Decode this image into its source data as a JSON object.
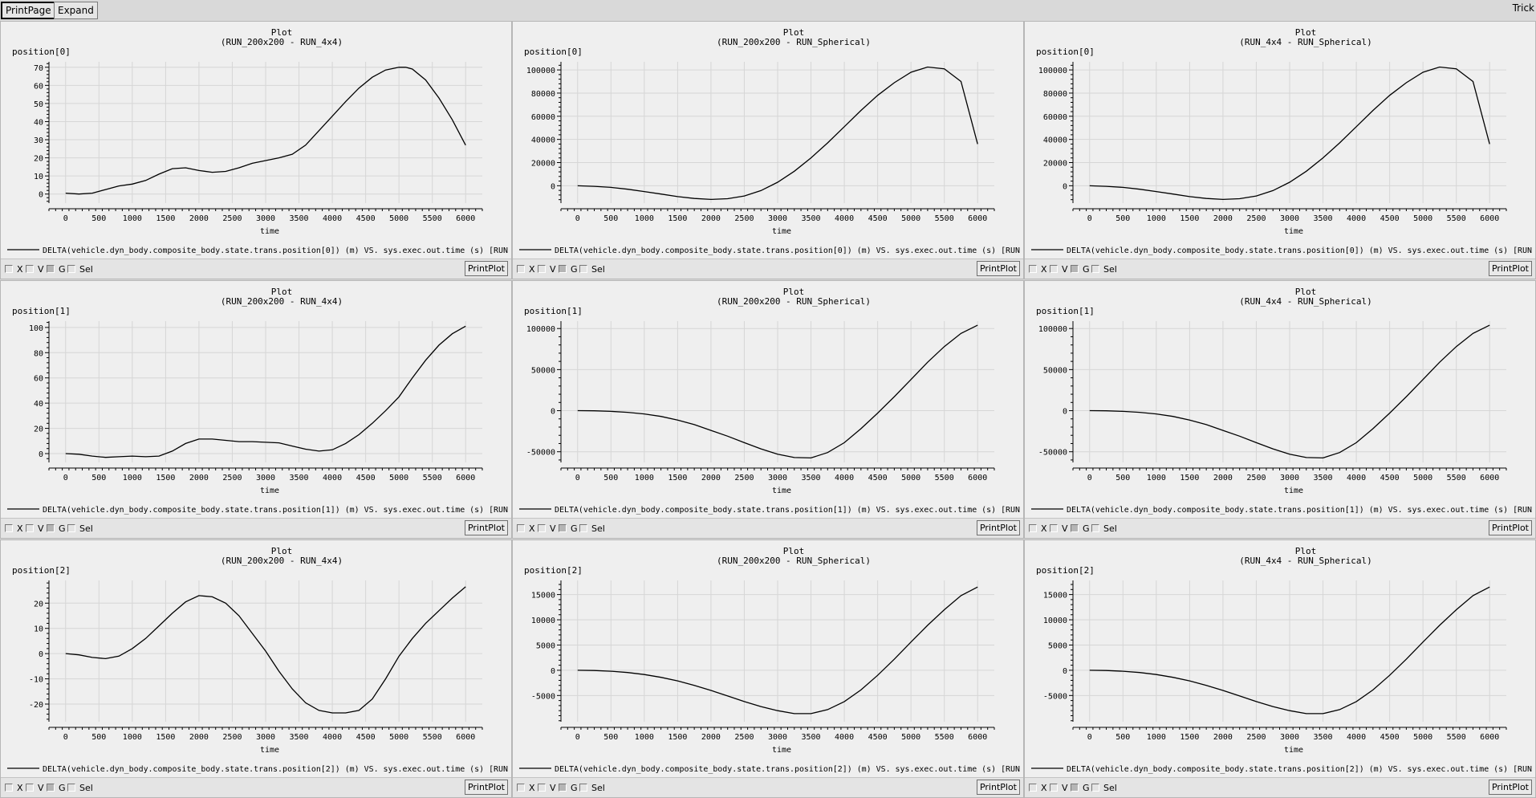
{
  "window": {
    "title": "Trick",
    "print_page_label": "PrintPage",
    "expand_label": "Expand"
  },
  "controls": {
    "x_label": "X",
    "v_label": "V",
    "g_label": "G",
    "sel_label": "Sel",
    "print_plot_label": "PrintPlot"
  },
  "chart_data": [
    {
      "type": "line",
      "title": "Plot",
      "subtitle": "(RUN_200x200 - RUN_4x4)",
      "xlabel": "time",
      "ylabel": "position[0]",
      "xlim": [
        -250,
        6250
      ],
      "ylim": [
        -5,
        73
      ],
      "xticks": [
        0,
        500,
        1000,
        1500,
        2000,
        2500,
        3000,
        3500,
        4000,
        4500,
        5000,
        5500,
        6000
      ],
      "yticks": [
        0,
        10,
        20,
        30,
        40,
        50,
        60,
        70
      ],
      "grid": true,
      "legend_text": "DELTA(vehicle.dyn_body.composite_body.state.trans.position[0]) (m) VS. sys.exec.out.time (s) [RUN",
      "series": [
        {
          "x": [
            0,
            200,
            400,
            600,
            800,
            1000,
            1200,
            1400,
            1600,
            1800,
            2000,
            2200,
            2400,
            2600,
            2800,
            3000,
            3200,
            3400,
            3600,
            3800,
            4000,
            4200,
            4400,
            4600,
            4800,
            5000,
            5100,
            5200,
            5400,
            5600,
            5800,
            6000
          ],
          "y": [
            0.5,
            0,
            0.5,
            2.5,
            4.5,
            5.5,
            7.5,
            11,
            14,
            14.5,
            13,
            12,
            12.5,
            14.5,
            17,
            18.5,
            20,
            22,
            27,
            35,
            43,
            51,
            58.5,
            64.5,
            68.5,
            70,
            70,
            69,
            63,
            53,
            41,
            27
          ]
        }
      ]
    },
    {
      "type": "line",
      "title": "Plot",
      "subtitle": "(RUN_200x200 - RUN_Spherical)",
      "xlabel": "time",
      "ylabel": "position[0]",
      "xlim": [
        -250,
        6250
      ],
      "ylim": [
        -15000,
        107000
      ],
      "xticks": [
        0,
        500,
        1000,
        1500,
        2000,
        2500,
        3000,
        3500,
        4000,
        4500,
        5000,
        5500,
        6000
      ],
      "yticks": [
        0,
        20000,
        40000,
        60000,
        80000,
        100000
      ],
      "grid": true,
      "legend_text": "DELTA(vehicle.dyn_body.composite_body.state.trans.position[0]) (m) VS. sys.exec.out.time (s) [RUN",
      "series": [
        {
          "x": [
            0,
            250,
            500,
            750,
            1000,
            1250,
            1500,
            1750,
            2000,
            2250,
            2500,
            2750,
            3000,
            3250,
            3500,
            3750,
            4000,
            4250,
            4500,
            4750,
            5000,
            5250,
            5500,
            5750,
            6000
          ],
          "y": [
            0,
            -500,
            -1400,
            -3000,
            -5000,
            -7200,
            -9400,
            -11000,
            -11800,
            -11200,
            -8800,
            -4200,
            3000,
            12500,
            24000,
            37000,
            51000,
            65000,
            78000,
            89000,
            98000,
            102500,
            101000,
            90000,
            36000
          ]
        }
      ]
    },
    {
      "type": "line",
      "title": "Plot",
      "subtitle": "(RUN_4x4 - RUN_Spherical)",
      "xlabel": "time",
      "ylabel": "position[0]",
      "xlim": [
        -250,
        6250
      ],
      "ylim": [
        -15000,
        107000
      ],
      "xticks": [
        0,
        500,
        1000,
        1500,
        2000,
        2500,
        3000,
        3500,
        4000,
        4500,
        5000,
        5500,
        6000
      ],
      "yticks": [
        0,
        20000,
        40000,
        60000,
        80000,
        100000
      ],
      "grid": true,
      "legend_text": "DELTA(vehicle.dyn_body.composite_body.state.trans.position[0]) (m) VS. sys.exec.out.time (s) [RUN",
      "series": [
        {
          "x": [
            0,
            250,
            500,
            750,
            1000,
            1250,
            1500,
            1750,
            2000,
            2250,
            2500,
            2750,
            3000,
            3250,
            3500,
            3750,
            4000,
            4250,
            4500,
            4750,
            5000,
            5250,
            5500,
            5750,
            6000
          ],
          "y": [
            0,
            -500,
            -1400,
            -3000,
            -5000,
            -7200,
            -9400,
            -11000,
            -11800,
            -11200,
            -8800,
            -4200,
            3000,
            12500,
            24000,
            37000,
            51000,
            65000,
            78000,
            89000,
            98000,
            102500,
            101000,
            90000,
            36000
          ]
        }
      ]
    },
    {
      "type": "line",
      "title": "Plot",
      "subtitle": "(RUN_200x200 - RUN_4x4)",
      "xlabel": "time",
      "ylabel": "position[1]",
      "xlim": [
        -250,
        6250
      ],
      "ylim": [
        -7,
        105
      ],
      "xticks": [
        0,
        500,
        1000,
        1500,
        2000,
        2500,
        3000,
        3500,
        4000,
        4500,
        5000,
        5500,
        6000
      ],
      "yticks": [
        0,
        20,
        40,
        60,
        80,
        100
      ],
      "grid": true,
      "legend_text": "DELTA(vehicle.dyn_body.composite_body.state.trans.position[1]) (m) VS. sys.exec.out.time (s) [RUN",
      "series": [
        {
          "x": [
            0,
            200,
            400,
            600,
            800,
            1000,
            1200,
            1400,
            1600,
            1800,
            2000,
            2200,
            2400,
            2600,
            2800,
            3000,
            3200,
            3400,
            3600,
            3800,
            4000,
            4200,
            4400,
            4600,
            4800,
            5000,
            5200,
            5400,
            5600,
            5800,
            6000
          ],
          "y": [
            0,
            -0.5,
            -2,
            -3,
            -2.5,
            -2,
            -2.5,
            -2,
            2,
            8,
            11.5,
            11.5,
            10.5,
            9.5,
            9.5,
            9,
            8.5,
            6,
            3.5,
            2,
            3,
            8,
            15,
            24,
            34,
            45,
            60,
            74,
            86,
            95,
            101
          ]
        }
      ]
    },
    {
      "type": "line",
      "title": "Plot",
      "subtitle": "(RUN_200x200 - RUN_Spherical)",
      "xlabel": "time",
      "ylabel": "position[1]",
      "xlim": [
        -250,
        6250
      ],
      "ylim": [
        -63000,
        109000
      ],
      "xticks": [
        0,
        500,
        1000,
        1500,
        2000,
        2500,
        3000,
        3500,
        4000,
        4500,
        5000,
        5500,
        6000
      ],
      "yticks": [
        -50000,
        0,
        50000,
        100000
      ],
      "grid": true,
      "legend_text": "DELTA(vehicle.dyn_body.composite_body.state.trans.position[1]) (m) VS. sys.exec.out.time (s) [RUN",
      "series": [
        {
          "x": [
            0,
            250,
            500,
            750,
            1000,
            1250,
            1500,
            1750,
            2000,
            2250,
            2500,
            2750,
            3000,
            3250,
            3500,
            3750,
            4000,
            4250,
            4500,
            4750,
            5000,
            5250,
            5500,
            5750,
            6000
          ],
          "y": [
            0,
            -200,
            -800,
            -2000,
            -4000,
            -7000,
            -11500,
            -17000,
            -24000,
            -31000,
            -39000,
            -46500,
            -53000,
            -57000,
            -57500,
            -51000,
            -39000,
            -22000,
            -3000,
            17000,
            38000,
            59000,
            78000,
            94000,
            104000
          ]
        }
      ]
    },
    {
      "type": "line",
      "title": "Plot",
      "subtitle": "(RUN_4x4 - RUN_Spherical)",
      "xlabel": "time",
      "ylabel": "position[1]",
      "xlim": [
        -250,
        6250
      ],
      "ylim": [
        -63000,
        109000
      ],
      "xticks": [
        0,
        500,
        1000,
        1500,
        2000,
        2500,
        3000,
        3500,
        4000,
        4500,
        5000,
        5500,
        6000
      ],
      "yticks": [
        -50000,
        0,
        50000,
        100000
      ],
      "grid": true,
      "legend_text": "DELTA(vehicle.dyn_body.composite_body.state.trans.position[1]) (m) VS. sys.exec.out.time (s) [RUN",
      "series": [
        {
          "x": [
            0,
            250,
            500,
            750,
            1000,
            1250,
            1500,
            1750,
            2000,
            2250,
            2500,
            2750,
            3000,
            3250,
            3500,
            3750,
            4000,
            4250,
            4500,
            4750,
            5000,
            5250,
            5500,
            5750,
            6000
          ],
          "y": [
            0,
            -200,
            -800,
            -2000,
            -4000,
            -7000,
            -11500,
            -17000,
            -24000,
            -31000,
            -39000,
            -46500,
            -53000,
            -57000,
            -57500,
            -51000,
            -39000,
            -22000,
            -3000,
            17000,
            38000,
            59000,
            78000,
            94000,
            104000
          ]
        }
      ]
    },
    {
      "type": "line",
      "title": "Plot",
      "subtitle": "(RUN_200x200 - RUN_4x4)",
      "xlabel": "time",
      "ylabel": "position[2]",
      "xlim": [
        -250,
        6250
      ],
      "ylim": [
        -27,
        29
      ],
      "xticks": [
        0,
        500,
        1000,
        1500,
        2000,
        2500,
        3000,
        3500,
        4000,
        4500,
        5000,
        5500,
        6000
      ],
      "yticks": [
        -20,
        -10,
        0,
        10,
        20
      ],
      "grid": true,
      "legend_text": "DELTA(vehicle.dyn_body.composite_body.state.trans.position[2]) (m) VS. sys.exec.out.time (s) [RUN",
      "series": [
        {
          "x": [
            0,
            200,
            400,
            600,
            800,
            1000,
            1200,
            1400,
            1600,
            1800,
            2000,
            2200,
            2400,
            2600,
            2800,
            3000,
            3200,
            3400,
            3600,
            3800,
            4000,
            4200,
            4400,
            4600,
            4800,
            5000,
            5200,
            5400,
            5600,
            5800,
            6000
          ],
          "y": [
            0,
            -0.5,
            -1.5,
            -2,
            -1,
            2,
            6,
            11,
            16,
            20.5,
            23,
            22.5,
            20,
            15,
            8,
            1,
            -7,
            -14,
            -19.5,
            -22.5,
            -23.5,
            -23.5,
            -22.5,
            -18,
            -10,
            -1,
            6,
            12,
            17,
            22,
            26.5
          ]
        }
      ]
    },
    {
      "type": "line",
      "title": "Plot",
      "subtitle": "(RUN_200x200 - RUN_Spherical)",
      "xlabel": "time",
      "ylabel": "position[2]",
      "xlim": [
        -250,
        6250
      ],
      "ylim": [
        -10200,
        17800
      ],
      "xticks": [
        0,
        500,
        1000,
        1500,
        2000,
        2500,
        3000,
        3500,
        4000,
        4500,
        5000,
        5500,
        6000
      ],
      "yticks": [
        -5000,
        0,
        5000,
        10000,
        15000
      ],
      "grid": true,
      "legend_text": "DELTA(vehicle.dyn_body.composite_body.state.trans.position[2]) (m) VS. sys.exec.out.time (s) [RUN",
      "series": [
        {
          "x": [
            0,
            250,
            500,
            750,
            1000,
            1250,
            1500,
            1750,
            2000,
            2250,
            2500,
            2750,
            3000,
            3250,
            3500,
            3750,
            4000,
            4250,
            4500,
            4750,
            5000,
            5250,
            5500,
            5750,
            6000
          ],
          "y": [
            0,
            -50,
            -200,
            -450,
            -850,
            -1400,
            -2100,
            -3000,
            -4000,
            -5100,
            -6200,
            -7200,
            -8000,
            -8600,
            -8600,
            -7800,
            -6200,
            -3900,
            -1000,
            2200,
            5600,
            8900,
            12000,
            14800,
            16500
          ]
        }
      ]
    },
    {
      "type": "line",
      "title": "Plot",
      "subtitle": "(RUN_4x4 - RUN_Spherical)",
      "xlabel": "time",
      "ylabel": "position[2]",
      "xlim": [
        -250,
        6250
      ],
      "ylim": [
        -10200,
        17800
      ],
      "xticks": [
        0,
        500,
        1000,
        1500,
        2000,
        2500,
        3000,
        3500,
        4000,
        4500,
        5000,
        5500,
        6000
      ],
      "yticks": [
        -5000,
        0,
        5000,
        10000,
        15000
      ],
      "grid": true,
      "legend_text": "DELTA(vehicle.dyn_body.composite_body.state.trans.position[2]) (m) VS. sys.exec.out.time (s) [RUN",
      "series": [
        {
          "x": [
            0,
            250,
            500,
            750,
            1000,
            1250,
            1500,
            1750,
            2000,
            2250,
            2500,
            2750,
            3000,
            3250,
            3500,
            3750,
            4000,
            4250,
            4500,
            4750,
            5000,
            5250,
            5500,
            5750,
            6000
          ],
          "y": [
            0,
            -50,
            -200,
            -450,
            -850,
            -1400,
            -2100,
            -3000,
            -4000,
            -5100,
            -6200,
            -7200,
            -8000,
            -8600,
            -8600,
            -7800,
            -6200,
            -3900,
            -1000,
            2200,
            5600,
            8900,
            12000,
            14800,
            16500
          ]
        }
      ]
    }
  ]
}
